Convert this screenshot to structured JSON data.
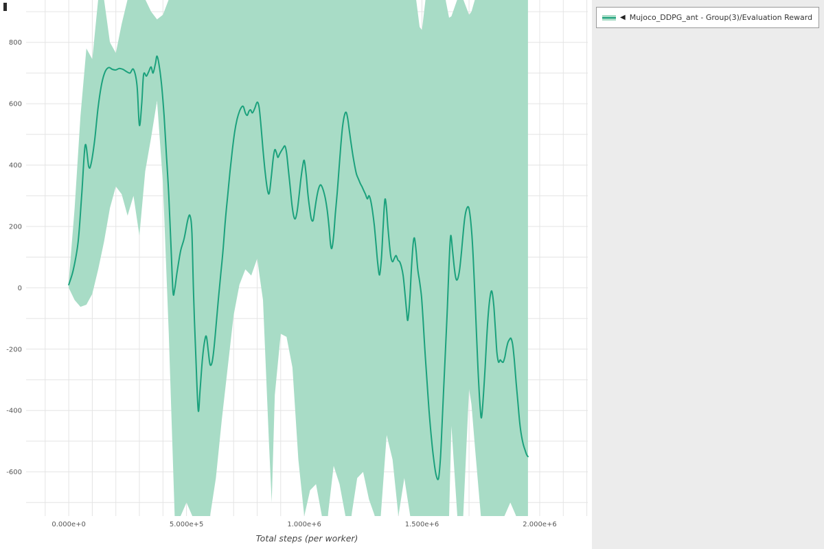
{
  "window": {
    "collapse_handle": ""
  },
  "legend": {
    "collapse_icon": "◀",
    "entries": [
      {
        "label": "Mujoco_DDPG_ant - Group(3)/Evaluation Reward"
      }
    ]
  },
  "chart_data": {
    "type": "line",
    "title": "",
    "xlabel": "Total steps (per worker)",
    "ylabel": "",
    "legend_position": "top-right",
    "grid": {
      "x_start": -100000,
      "x_end": 2200000,
      "x_minor_step": 100000,
      "y_start": -700,
      "y_end": 900,
      "y_minor_step": 100
    },
    "xlim": [
      -181000,
      2204000
    ],
    "ylim": [
      -744,
      938
    ],
    "x_ticks": [
      {
        "value": 0,
        "label": "0.000e+0"
      },
      {
        "value": 500000,
        "label": "5.000e+5"
      },
      {
        "value": 1000000,
        "label": "1.000e+6"
      },
      {
        "value": 1500000,
        "label": "1.500e+6"
      },
      {
        "value": 2000000,
        "label": "2.000e+6"
      }
    ],
    "y_ticks": [
      {
        "value": -600,
        "label": "-600"
      },
      {
        "value": -400,
        "label": "-400"
      },
      {
        "value": -200,
        "label": "-200"
      },
      {
        "value": 0,
        "label": "0"
      },
      {
        "value": 200,
        "label": "200"
      },
      {
        "value": 400,
        "label": "400"
      },
      {
        "value": 600,
        "label": "600"
      },
      {
        "value": 800,
        "label": "800"
      }
    ],
    "series": [
      {
        "name": "Mujoco_DDPG_ant - Group(3)/Evaluation Reward",
        "color": "#1ba17c",
        "band_color": "#a8dcc6",
        "x": [
          0,
          20000,
          40000,
          55000,
          70000,
          85000,
          95000,
          110000,
          125000,
          140000,
          155000,
          170000,
          185000,
          200000,
          215000,
          230000,
          245000,
          260000,
          275000,
          290000,
          300000,
          310000,
          318000,
          330000,
          340000,
          350000,
          358000,
          368000,
          375000,
          385000,
          395000,
          405000,
          415000,
          425000,
          435000,
          443000,
          450000,
          460000,
          475000,
          490000,
          505000,
          515000,
          523000,
          530000,
          540000,
          550000,
          558000,
          568000,
          578000,
          585000,
          593000,
          600000,
          608000,
          615000,
          625000,
          635000,
          645000,
          655000,
          665000,
          675000,
          685000,
          695000,
          705000,
          715000,
          725000,
          735000,
          742000,
          750000,
          758000,
          765000,
          772000,
          780000,
          790000,
          800000,
          808000,
          815000,
          825000,
          835000,
          845000,
          852000,
          860000,
          868000,
          875000,
          882000,
          888000,
          895000,
          902000,
          910000,
          918000,
          925000,
          932000,
          940000,
          948000,
          955000,
          962000,
          970000,
          978000,
          985000,
          993000,
          1000000,
          1008000,
          1015000,
          1022000,
          1030000,
          1038000,
          1045000,
          1052000,
          1060000,
          1068000,
          1075000,
          1082000,
          1090000,
          1098000,
          1105000,
          1112000,
          1118000,
          1125000,
          1132000,
          1140000,
          1148000,
          1155000,
          1162000,
          1170000,
          1178000,
          1185000,
          1192000,
          1200000,
          1208000,
          1215000,
          1222000,
          1230000,
          1238000,
          1245000,
          1252000,
          1260000,
          1268000,
          1275000,
          1282000,
          1290000,
          1298000,
          1305000,
          1312000,
          1320000,
          1328000,
          1335000,
          1342000,
          1348000,
          1355000,
          1362000,
          1368000,
          1375000,
          1382000,
          1390000,
          1398000,
          1405000,
          1412000,
          1420000,
          1428000,
          1435000,
          1440000,
          1448000,
          1455000,
          1462000,
          1468000,
          1475000,
          1482000,
          1490000,
          1498000,
          1505000,
          1512000,
          1520000,
          1530000,
          1540000,
          1550000,
          1560000,
          1570000,
          1578000,
          1585000,
          1592000,
          1600000,
          1608000,
          1615000,
          1622000,
          1630000,
          1638000,
          1645000,
          1652000,
          1660000,
          1668000,
          1675000,
          1682000,
          1690000,
          1698000,
          1705000,
          1712000,
          1718000,
          1725000,
          1732000,
          1740000,
          1748000,
          1753000,
          1760000,
          1768000,
          1775000,
          1782000,
          1790000,
          1797000,
          1805000,
          1812000,
          1818000,
          1825000,
          1832000,
          1838000,
          1845000,
          1852000,
          1858000,
          1865000,
          1872000,
          1878000,
          1885000,
          1892000,
          1900000,
          1908000,
          1915000,
          1922000,
          1930000,
          1938000,
          1945000,
          1950000
        ],
        "mean": [
          10,
          60,
          150,
          300,
          465,
          395,
          405,
          480,
          590,
          665,
          705,
          718,
          712,
          710,
          715,
          712,
          705,
          700,
          712,
          660,
          530,
          600,
          695,
          690,
          705,
          720,
          700,
          730,
          755,
          720,
          655,
          560,
          430,
          300,
          120,
          -15,
          -5,
          50,
          120,
          160,
          220,
          235,
          180,
          -20,
          -230,
          -400,
          -330,
          -230,
          -170,
          -160,
          -210,
          -250,
          -245,
          -210,
          -130,
          -40,
          40,
          120,
          220,
          300,
          380,
          450,
          510,
          550,
          575,
          590,
          590,
          570,
          562,
          575,
          580,
          570,
          585,
          605,
          590,
          540,
          450,
          370,
          315,
          310,
          360,
          420,
          450,
          440,
          425,
          435,
          445,
          455,
          462,
          440,
          390,
          330,
          270,
          235,
          225,
          250,
          300,
          350,
          395,
          415,
          370,
          310,
          265,
          225,
          220,
          255,
          290,
          320,
          335,
          330,
          315,
          290,
          250,
          200,
          140,
          130,
          170,
          240,
          310,
          390,
          460,
          520,
          560,
          572,
          550,
          510,
          465,
          425,
          395,
          370,
          355,
          340,
          330,
          318,
          305,
          290,
          300,
          285,
          250,
          200,
          140,
          80,
          42,
          100,
          200,
          285,
          270,
          200,
          140,
          100,
          85,
          95,
          105,
          90,
          85,
          70,
          40,
          -20,
          -80,
          -105,
          -40,
          60,
          140,
          162,
          120,
          60,
          20,
          -30,
          -110,
          -200,
          -290,
          -400,
          -490,
          -560,
          -610,
          -622,
          -560,
          -450,
          -330,
          -200,
          -60,
          80,
          170,
          120,
          60,
          28,
          30,
          60,
          120,
          180,
          230,
          258,
          262,
          230,
          170,
          90,
          -30,
          -160,
          -300,
          -400,
          -422,
          -360,
          -260,
          -160,
          -80,
          -25,
          -12,
          -60,
          -140,
          -210,
          -242,
          -235,
          -240,
          -242,
          -225,
          -200,
          -178,
          -168,
          -165,
          -185,
          -235,
          -310,
          -380,
          -440,
          -480,
          -510,
          -530,
          -545,
          -550
        ],
        "band": {
          "x": [
            0,
            25000,
            50000,
            75000,
            100000,
            125000,
            150000,
            175000,
            200000,
            225000,
            250000,
            275000,
            300000,
            325000,
            350000,
            375000,
            400000,
            425000,
            450000,
            475000,
            500000,
            525000,
            550000,
            575000,
            600000,
            625000,
            650000,
            675000,
            700000,
            725000,
            750000,
            775000,
            800000,
            825000,
            850000,
            862000,
            875000,
            900000,
            925000,
            950000,
            975000,
            1000000,
            1025000,
            1050000,
            1075000,
            1100000,
            1125000,
            1150000,
            1175000,
            1200000,
            1225000,
            1250000,
            1275000,
            1300000,
            1325000,
            1350000,
            1375000,
            1400000,
            1425000,
            1450000,
            1475000,
            1490000,
            1500000,
            1515000,
            1550000,
            1575000,
            1600000,
            1615000,
            1625000,
            1650000,
            1675000,
            1700000,
            1710000,
            1725000,
            1750000,
            1775000,
            1800000,
            1825000,
            1850000,
            1875000,
            1900000,
            1925000,
            1950000
          ],
          "upper": [
            20,
            260,
            560,
            780,
            745,
            940,
            940,
            800,
            765,
            860,
            940,
            940,
            940,
            940,
            900,
            875,
            890,
            940,
            940,
            940,
            940,
            940,
            940,
            940,
            940,
            940,
            940,
            940,
            940,
            940,
            940,
            940,
            940,
            940,
            940,
            940,
            940,
            940,
            940,
            940,
            940,
            940,
            940,
            940,
            940,
            940,
            940,
            940,
            940,
            940,
            940,
            940,
            940,
            940,
            940,
            940,
            940,
            940,
            940,
            940,
            940,
            850,
            840,
            940,
            940,
            940,
            940,
            880,
            885,
            940,
            940,
            890,
            900,
            940,
            940,
            940,
            940,
            940,
            940,
            940,
            940,
            940,
            940
          ],
          "lower": [
            0,
            -40,
            -62,
            -55,
            -20,
            60,
            150,
            260,
            330,
            305,
            235,
            300,
            170,
            380,
            490,
            610,
            340,
            -150,
            -744,
            -744,
            -700,
            -744,
            -744,
            -744,
            -744,
            -620,
            -430,
            -260,
            -90,
            10,
            60,
            40,
            95,
            -40,
            -500,
            -700,
            -350,
            -150,
            -160,
            -260,
            -560,
            -744,
            -660,
            -640,
            -744,
            -744,
            -580,
            -640,
            -744,
            -744,
            -620,
            -600,
            -690,
            -744,
            -744,
            -480,
            -560,
            -744,
            -620,
            -744,
            -744,
            -744,
            -744,
            -744,
            -744,
            -744,
            -744,
            -744,
            -450,
            -744,
            -744,
            -330,
            -380,
            -520,
            -744,
            -744,
            -744,
            -744,
            -744,
            -700,
            -744,
            -744,
            -744
          ]
        }
      }
    ]
  }
}
